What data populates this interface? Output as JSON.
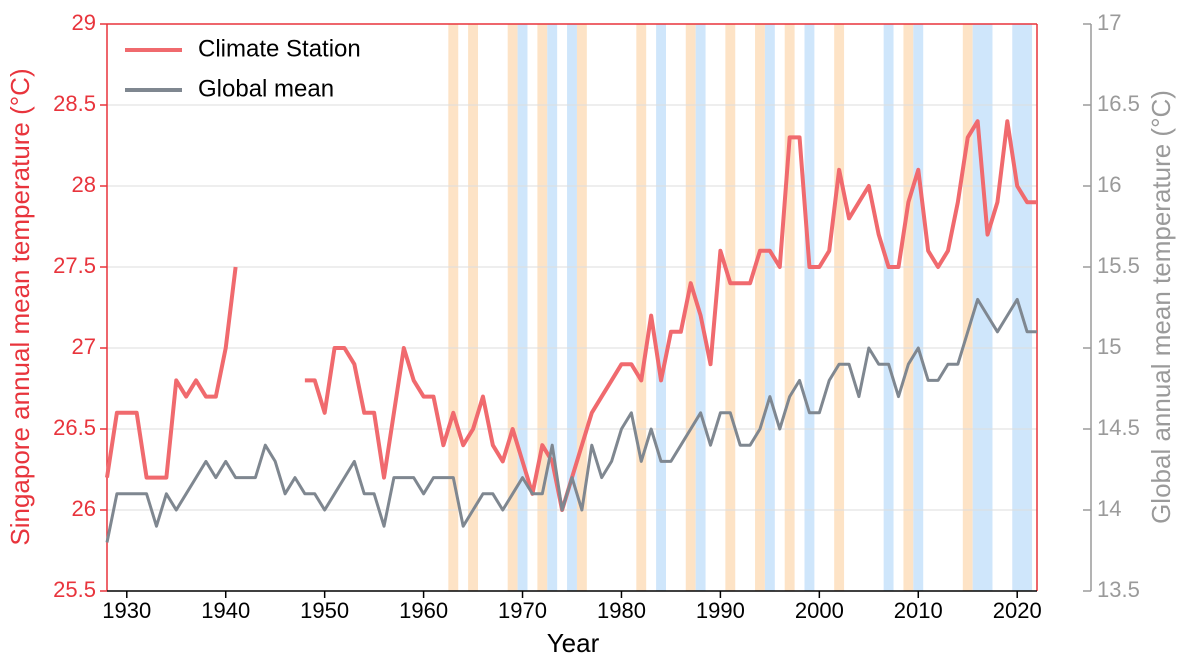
{
  "chart_data": {
    "type": "line",
    "xlabel": "Year",
    "ylabel": "Singapore annual mean temperature (°C)",
    "y2label": "Global annual mean temperature (°C)",
    "x": [
      1928,
      1929,
      1930,
      1931,
      1932,
      1933,
      1934,
      1935,
      1936,
      1937,
      1938,
      1939,
      1940,
      1941,
      1942,
      1943,
      1944,
      1945,
      1946,
      1947,
      1948,
      1949,
      1950,
      1951,
      1952,
      1953,
      1954,
      1955,
      1956,
      1957,
      1958,
      1959,
      1960,
      1961,
      1962,
      1963,
      1964,
      1965,
      1966,
      1967,
      1968,
      1969,
      1970,
      1971,
      1972,
      1973,
      1974,
      1975,
      1976,
      1977,
      1978,
      1979,
      1980,
      1981,
      1982,
      1983,
      1984,
      1985,
      1986,
      1987,
      1988,
      1989,
      1990,
      1991,
      1992,
      1993,
      1994,
      1995,
      1996,
      1997,
      1998,
      1999,
      2000,
      2001,
      2002,
      2003,
      2004,
      2005,
      2006,
      2007,
      2008,
      2009,
      2010,
      2011,
      2012,
      2013,
      2014,
      2015,
      2016,
      2017,
      2018,
      2019,
      2020,
      2021,
      2022
    ],
    "series": [
      {
        "name": "Climate Station",
        "color": "#f06a6e",
        "axis": "y",
        "values": [
          26.2,
          26.6,
          26.6,
          26.6,
          26.2,
          26.2,
          26.2,
          26.8,
          26.7,
          26.8,
          26.7,
          26.7,
          27.0,
          27.5,
          null,
          null,
          null,
          null,
          null,
          null,
          26.8,
          26.8,
          26.6,
          27.0,
          27.0,
          26.9,
          26.6,
          26.6,
          26.2,
          26.6,
          27.0,
          26.8,
          26.7,
          26.7,
          26.4,
          26.6,
          26.4,
          26.5,
          26.7,
          26.4,
          26.3,
          26.5,
          26.3,
          26.1,
          26.4,
          26.3,
          26.0,
          26.2,
          26.4,
          26.6,
          26.7,
          26.8,
          26.9,
          26.9,
          26.8,
          27.2,
          26.8,
          27.1,
          27.1,
          27.4,
          27.2,
          26.9,
          27.6,
          27.4,
          27.4,
          27.4,
          27.6,
          27.6,
          27.5,
          28.3,
          28.3,
          27.5,
          27.5,
          27.6,
          28.1,
          27.8,
          27.9,
          28.0,
          27.7,
          27.5,
          27.5,
          27.9,
          28.1,
          27.6,
          27.5,
          27.6,
          27.9,
          28.3,
          28.4,
          27.7,
          27.9,
          28.4,
          28.0,
          27.9,
          27.9
        ]
      },
      {
        "name": "Global mean",
        "color": "#7f8790",
        "axis": "y2",
        "values": [
          13.8,
          14.1,
          14.1,
          14.1,
          14.1,
          13.9,
          14.1,
          14.0,
          14.1,
          14.2,
          14.3,
          14.2,
          14.3,
          14.2,
          14.2,
          14.2,
          14.4,
          14.3,
          14.1,
          14.2,
          14.1,
          14.1,
          14.0,
          14.1,
          14.2,
          14.3,
          14.1,
          14.1,
          13.9,
          14.2,
          14.2,
          14.2,
          14.1,
          14.2,
          14.2,
          14.2,
          13.9,
          14.0,
          14.1,
          14.1,
          14.0,
          14.1,
          14.2,
          14.1,
          14.1,
          14.4,
          14.0,
          14.2,
          14.0,
          14.4,
          14.2,
          14.3,
          14.5,
          14.6,
          14.3,
          14.5,
          14.3,
          14.3,
          14.4,
          14.5,
          14.6,
          14.4,
          14.6,
          14.6,
          14.4,
          14.4,
          14.5,
          14.7,
          14.5,
          14.7,
          14.8,
          14.6,
          14.6,
          14.8,
          14.9,
          14.9,
          14.7,
          15.0,
          14.9,
          14.9,
          14.7,
          14.9,
          15.0,
          14.8,
          14.8,
          14.9,
          14.9,
          15.1,
          15.3,
          15.2,
          15.1,
          15.2,
          15.3,
          15.1,
          15.1
        ]
      }
    ],
    "bands": [
      {
        "x": [
          1962.5,
          1963.5
        ],
        "color": "#fde3c6"
      },
      {
        "x": [
          1964.5,
          1965.5
        ],
        "color": "#fde3c6"
      },
      {
        "x": [
          1968.5,
          1969.5
        ],
        "color": "#fde3c6"
      },
      {
        "x": [
          1969.5,
          1970.5
        ],
        "color": "#cfe6fb"
      },
      {
        "x": [
          1971.5,
          1972.5
        ],
        "color": "#fde3c6"
      },
      {
        "x": [
          1972.5,
          1973.5
        ],
        "color": "#cfe6fb"
      },
      {
        "x": [
          1974.5,
          1975.5
        ],
        "color": "#cfe6fb"
      },
      {
        "x": [
          1975.5,
          1976.5
        ],
        "color": "#fde3c6"
      },
      {
        "x": [
          1981.5,
          1982.5
        ],
        "color": "#fde3c6"
      },
      {
        "x": [
          1983.5,
          1984.5
        ],
        "color": "#cfe6fb"
      },
      {
        "x": [
          1986.5,
          1987.5
        ],
        "color": "#fde3c6"
      },
      {
        "x": [
          1987.5,
          1988.5
        ],
        "color": "#cfe6fb"
      },
      {
        "x": [
          1990.5,
          1991.5
        ],
        "color": "#fde3c6"
      },
      {
        "x": [
          1993.5,
          1994.5
        ],
        "color": "#fde3c6"
      },
      {
        "x": [
          1994.5,
          1995.5
        ],
        "color": "#cfe6fb"
      },
      {
        "x": [
          1996.5,
          1997.5
        ],
        "color": "#fde3c6"
      },
      {
        "x": [
          1998.5,
          1999.5
        ],
        "color": "#cfe6fb"
      },
      {
        "x": [
          2001.5,
          2002.5
        ],
        "color": "#fde3c6"
      },
      {
        "x": [
          2006.5,
          2007.5
        ],
        "color": "#cfe6fb"
      },
      {
        "x": [
          2008.5,
          2009.5
        ],
        "color": "#fde3c6"
      },
      {
        "x": [
          2009.5,
          2010.5
        ],
        "color": "#cfe6fb"
      },
      {
        "x": [
          2014.5,
          2015.5
        ],
        "color": "#fde3c6"
      },
      {
        "x": [
          2015.5,
          2017.5
        ],
        "color": "#cfe6fb"
      },
      {
        "x": [
          2019.5,
          2021.5
        ],
        "color": "#cfe6fb"
      }
    ],
    "xlim": [
      1928,
      2022
    ],
    "xticks": [
      1930,
      1940,
      1950,
      1960,
      1970,
      1980,
      1990,
      2000,
      2010,
      2020
    ],
    "ylim": [
      25.5,
      29
    ],
    "yticks": [
      25.5,
      26,
      26.5,
      27,
      27.5,
      28,
      28.5,
      29
    ],
    "y2lim": [
      13.5,
      17
    ],
    "y2ticks": [
      13.5,
      14,
      14.5,
      15,
      15.5,
      16,
      16.5,
      17
    ],
    "grid": true,
    "legend": "upper left",
    "ycolor": "#e8343c",
    "y2color": "#9a9a9a"
  }
}
